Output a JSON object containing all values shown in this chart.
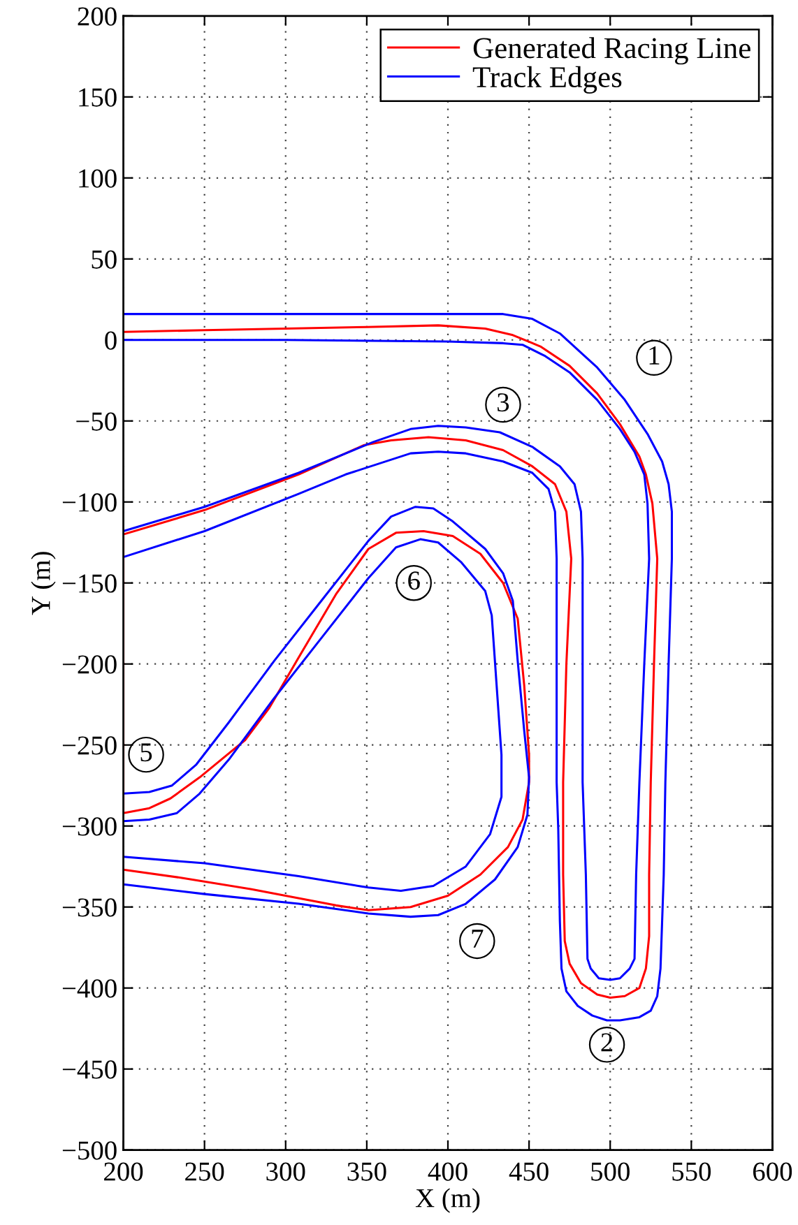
{
  "chart_data": {
    "type": "line",
    "xlabel": "X (m)",
    "ylabel": "Y (m)",
    "xlim": [
      200,
      600
    ],
    "ylim": [
      -500,
      200
    ],
    "xticks": [
      200,
      250,
      300,
      350,
      400,
      450,
      500,
      550,
      600
    ],
    "yticks": [
      -500,
      -450,
      -400,
      -350,
      -300,
      -250,
      -200,
      -150,
      -100,
      -50,
      0,
      50,
      100,
      150,
      200
    ],
    "grid": true,
    "legend": "top right",
    "line_style": "solid",
    "series": [
      {
        "name": "Generated Racing Line",
        "color": "#ff0000",
        "x": [
          200,
          250,
          300,
          350,
          394,
          423,
          440,
          457,
          475,
          492,
          506,
          518,
          522,
          526,
          529,
          527,
          525,
          524,
          524,
          522,
          518,
          509,
          500,
          492,
          482,
          475,
          472,
          471,
          471,
          473,
          476,
          473,
          466,
          452,
          434,
          411,
          388,
          365,
          348,
          308,
          250,
          200,
          200,
          216,
          229,
          247,
          264,
          275,
          290,
          308,
          331,
          351,
          368,
          385,
          403,
          420,
          434,
          443,
          447,
          450,
          450,
          446,
          437,
          420,
          400,
          377,
          351,
          331,
          279,
          236,
          200
        ],
        "values": [
          5,
          6,
          7,
          8,
          9,
          7,
          3,
          -4,
          -16,
          -33,
          -52,
          -72,
          -83,
          -101,
          -135,
          -200,
          -273,
          -330,
          -368,
          -388,
          -400,
          -405,
          -406,
          -404,
          -397,
          -385,
          -371,
          -330,
          -273,
          -200,
          -135,
          -106,
          -89,
          -78,
          -68,
          -62,
          -60,
          -62,
          -65,
          -83,
          -105,
          -120,
          -292,
          -289,
          -283,
          -270,
          -256,
          -247,
          -227,
          -196,
          -157,
          -129,
          -119,
          -118,
          -121,
          -132,
          -150,
          -172,
          -213,
          -256,
          -273,
          -296,
          -313,
          -330,
          -343,
          -350,
          -352,
          -349,
          -339,
          -332,
          -327
        ]
      },
      {
        "name": "Track Edges",
        "color": "#0000ff",
        "x": [
          200,
          300,
          400,
          434,
          452,
          469,
          492,
          509,
          523,
          532,
          536,
          538,
          538,
          536,
          534,
          533,
          531,
          529,
          525,
          518,
          506,
          498,
          489,
          480,
          473,
          470,
          469,
          468,
          467,
          467,
          467,
          466,
          462,
          452,
          434,
          411,
          394,
          377,
          337,
          308,
          250,
          200,
          null,
          200,
          300,
          400,
          434,
          446,
          460,
          475,
          492,
          506,
          515,
          521,
          523,
          524,
          521,
          518,
          516,
          515,
          512,
          506,
          500,
          493,
          488,
          486,
          485,
          483,
          483,
          483,
          482,
          478,
          469,
          452,
          432,
          411,
          394,
          377,
          354,
          308,
          250,
          200,
          null,
          200,
          216,
          230,
          245,
          265,
          293,
          322,
          351,
          365,
          380,
          391,
          403,
          423,
          434,
          440,
          443,
          447,
          450,
          449,
          443,
          429,
          411,
          394,
          377,
          351,
          308,
          250,
          200,
          null,
          200,
          216,
          233,
          247,
          265,
          293,
          322,
          351,
          368,
          383,
          394,
          408,
          423,
          427,
          430,
          433,
          433,
          426,
          411,
          391,
          371,
          351,
          308,
          250,
          200
        ],
        "values": [
          16,
          16,
          16,
          16,
          13,
          4,
          -17,
          -37,
          -58,
          -75,
          -89,
          -106,
          -135,
          -200,
          -273,
          -330,
          -388,
          -405,
          -414,
          -418,
          -420,
          -420,
          -417,
          -411,
          -402,
          -388,
          -359,
          -302,
          -273,
          -200,
          -135,
          -106,
          -92,
          -82,
          -75,
          -70,
          -69,
          -70,
          -83,
          -95,
          -118,
          -134,
          null,
          0,
          0,
          -1,
          -2,
          -3,
          -10,
          -20,
          -37,
          -55,
          -69,
          -83,
          -101,
          -135,
          -200,
          -273,
          -330,
          -382,
          -388,
          -394,
          -395,
          -394,
          -388,
          -382,
          -330,
          -273,
          -200,
          -135,
          -106,
          -89,
          -78,
          -66,
          -57,
          -54,
          -53,
          -55,
          -63,
          -82,
          -103,
          -118,
          null,
          -280,
          -279,
          -275,
          -262,
          -236,
          -198,
          -161,
          -124,
          -109,
          -103,
          -104,
          -112,
          -129,
          -144,
          -161,
          -198,
          -241,
          -270,
          -293,
          -313,
          -333,
          -348,
          -355,
          -356,
          -354,
          -348,
          -342,
          -336,
          null,
          -297,
          -296,
          -292,
          -280,
          -259,
          -221,
          -184,
          -147,
          -128,
          -123,
          -125,
          -137,
          -155,
          -170,
          -213,
          -256,
          -282,
          -305,
          -325,
          -337,
          -340,
          -338,
          -331,
          -323,
          -319
        ]
      }
    ],
    "annotations": [
      {
        "text": "1",
        "x": 527,
        "y": -11
      },
      {
        "text": "2",
        "x": 498,
        "y": -435
      },
      {
        "text": "3",
        "x": 434,
        "y": -40
      },
      {
        "text": "5",
        "x": 214,
        "y": -256
      },
      {
        "text": "6",
        "x": 379,
        "y": -150
      },
      {
        "text": "7",
        "x": 418,
        "y": -371
      }
    ]
  }
}
